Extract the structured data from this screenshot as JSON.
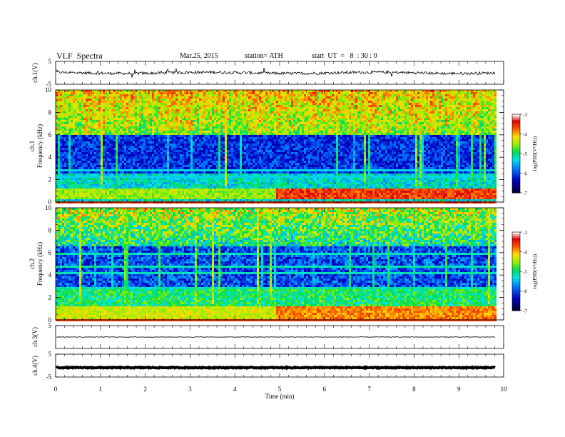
{
  "header": {
    "title": "VLF  Spectra",
    "date": "Mar.25, 2015",
    "station": "station= ATH",
    "start": "start  UT  =   8  : 30 : 0"
  },
  "chart_data": {
    "type": "heatmap",
    "xlabel": "Time  (min)",
    "xlim": [
      0,
      10
    ],
    "x_ticks": [
      "0",
      "1",
      "2",
      "3",
      "4",
      "5",
      "6",
      "7",
      "8",
      "9",
      "10"
    ],
    "data_end_min": 9.82,
    "panels": [
      {
        "id": "ch1-waveform",
        "ylabel": "ch.1(V)",
        "ylim": [
          -5,
          5
        ],
        "y_ticks": [
          "5",
          "-5"
        ],
        "trace": "noisy",
        "level": 0.0
      },
      {
        "id": "ch1-spectrogram",
        "ylabel_1": "ch.1",
        "ylabel_2": "Frequency  (kHz)",
        "ylim": [
          0,
          10
        ],
        "y_ticks": [
          "0",
          "2",
          "4",
          "6",
          "8",
          "10"
        ],
        "colorbar": {
          "label": "log(PSD(V²/Hz))",
          "range": [
            -7,
            -3
          ],
          "ticks": [
            "-3",
            "-4",
            "-5",
            "-6",
            "-7"
          ]
        }
      },
      {
        "id": "ch2-spectrogram",
        "ylabel_1": "ch.2",
        "ylabel_2": "Frequency  (kHz)",
        "ylim": [
          0,
          10
        ],
        "y_ticks": [
          "0",
          "2",
          "4",
          "6",
          "8",
          "10"
        ],
        "colorbar": {
          "label": "log(PSD(V²/Hz))",
          "range": [
            -7,
            -3
          ],
          "ticks": [
            "-3",
            "-4",
            "-5",
            "-6",
            "-7"
          ]
        }
      },
      {
        "id": "ch3-waveform",
        "ylabel": "ch.3(V)",
        "ylim": [
          -5,
          5
        ],
        "y_ticks": [
          "5"
        ],
        "trace": "thin",
        "level": 0.0
      },
      {
        "id": "ch4-waveform",
        "ylabel": "ch.4(V)",
        "ylim": [
          -5,
          5
        ],
        "y_ticks": [
          "5",
          "-5"
        ],
        "trace": "thick",
        "level": -0.9
      }
    ]
  }
}
